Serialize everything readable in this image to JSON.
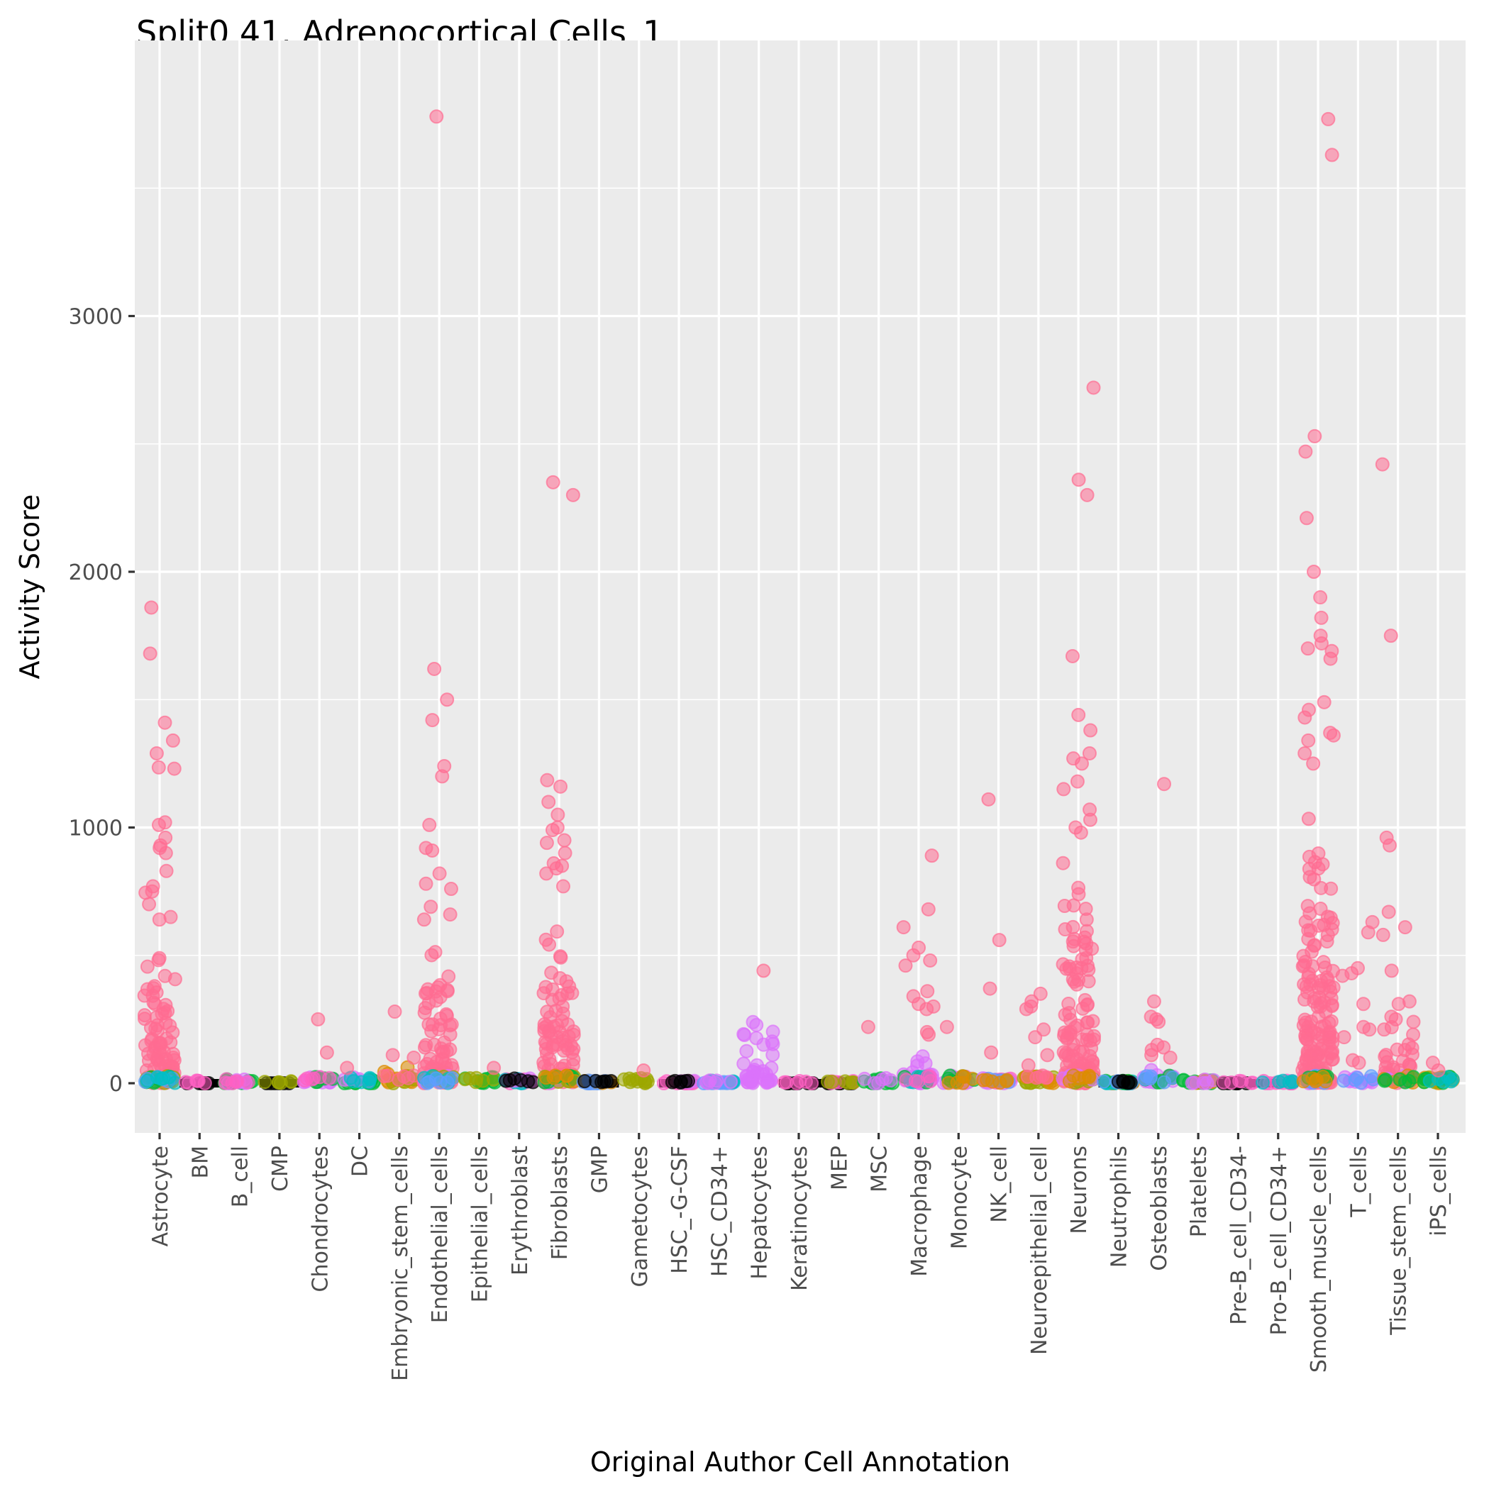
{
  "chart_data": {
    "type": "scatter",
    "subtype": "jitter-strip",
    "title": "Split0 41. Adrenocortical Cells_1",
    "xlabel": "Original Author Cell Annotation",
    "ylabel": "Activity Score",
    "ylim": [
      -200,
      4080
    ],
    "yticks": [
      0,
      1000,
      2000,
      3000
    ],
    "ytick_labels": [
      "0",
      "1000",
      "2000",
      "3000"
    ],
    "grid": true,
    "legend": "none",
    "background": "#EBEBEB",
    "categories": [
      "Astrocyte",
      "BM",
      "B_cell",
      "CMP",
      "Chondrocytes",
      "DC",
      "Embryonic_stem_cells",
      "Endothelial_cells",
      "Epithelial_cells",
      "Erythroblast",
      "Fibroblasts",
      "GMP",
      "Gametocytes",
      "HSC_-G-CSF",
      "HSC_CD34+",
      "Hepatocytes",
      "Keratinocytes",
      "MEP",
      "MSC",
      "Macrophage",
      "Monocyte",
      "NK_cell",
      "Neuroepithelial_cell",
      "Neurons",
      "Neutrophils",
      "Osteoblasts",
      "Platelets",
      "Pre-B_cell_CD34-",
      "Pro-B_cell_CD34+",
      "Smooth_muscle_cells",
      "T_cells",
      "Tissue_stem_cells",
      "iPS_cells"
    ],
    "palette": {
      "pink": "#FF6C91",
      "orange": "#DE8C00",
      "olive": "#9CA700",
      "green": "#00BA38",
      "teal": "#00BFC4",
      "blue": "#619CFF",
      "violet": "#DB72FB",
      "magenta": "#FF61C3",
      "black": "#000000"
    },
    "series": [
      {
        "category": "Astrocyte",
        "max": 1860,
        "bulk_top": 620,
        "dominant": "pink",
        "outliers": [
          1860,
          1680,
          1410,
          1340,
          1290,
          1235,
          1230,
          1020,
          1010,
          960,
          930,
          920,
          900,
          830,
          770,
          750,
          745,
          700,
          650,
          640
        ],
        "base_colors": [
          "olive",
          "orange",
          "green",
          "blue",
          "teal"
        ]
      },
      {
        "category": "BM",
        "max": 0,
        "bulk_top": 0,
        "dominant": "black",
        "outliers": [],
        "base_colors": [
          "magenta"
        ]
      },
      {
        "category": "B_cell",
        "max": 20,
        "bulk_top": 15,
        "dominant": "green",
        "outliers": [],
        "base_colors": [
          "green",
          "violet",
          "magenta"
        ]
      },
      {
        "category": "CMP",
        "max": 0,
        "bulk_top": 0,
        "dominant": "black",
        "outliers": [],
        "base_colors": [
          "olive"
        ]
      },
      {
        "category": "Chondrocytes",
        "max": 250,
        "bulk_top": 30,
        "dominant": "violet",
        "outliers": [
          250,
          120
        ],
        "base_colors": [
          "violet",
          "green",
          "magenta"
        ]
      },
      {
        "category": "DC",
        "max": 60,
        "bulk_top": 30,
        "dominant": "green",
        "outliers": [
          60
        ],
        "base_colors": [
          "green",
          "violet",
          "teal"
        ]
      },
      {
        "category": "Embryonic_stem_cells",
        "max": 280,
        "bulk_top": 70,
        "dominant": "orange",
        "outliers": [
          280,
          110,
          100
        ],
        "base_colors": [
          "orange",
          "olive",
          "pink"
        ]
      },
      {
        "category": "Endothelial_cells",
        "max": 3780,
        "bulk_top": 600,
        "dominant": "pink",
        "outliers": [
          3780,
          1620,
          1500,
          1420,
          1240,
          1200,
          1010,
          920,
          910,
          820,
          780,
          760,
          690,
          660,
          640
        ],
        "base_colors": [
          "violet",
          "olive",
          "teal",
          "blue"
        ]
      },
      {
        "category": "Epithelial_cells",
        "max": 60,
        "bulk_top": 30,
        "dominant": "green",
        "outliers": [
          60
        ],
        "base_colors": [
          "green",
          "olive"
        ]
      },
      {
        "category": "Erythroblast",
        "max": 40,
        "bulk_top": 20,
        "dominant": "magenta",
        "outliers": [],
        "base_colors": [
          "magenta",
          "teal",
          "violet",
          "black"
        ]
      },
      {
        "category": "Fibroblasts",
        "max": 2350,
        "bulk_top": 700,
        "dominant": "pink",
        "outliers": [
          2350,
          2300,
          1185,
          1160,
          1100,
          1050,
          1000,
          990,
          950,
          940,
          900,
          860,
          850,
          840,
          820,
          770
        ],
        "base_colors": [
          "violet",
          "olive",
          "green",
          "orange"
        ]
      },
      {
        "category": "GMP",
        "max": 0,
        "bulk_top": 0,
        "dominant": "blue",
        "outliers": [],
        "base_colors": [
          "orange",
          "blue",
          "black"
        ]
      },
      {
        "category": "Gametocytes",
        "max": 50,
        "bulk_top": 20,
        "dominant": "olive",
        "outliers": [
          50
        ],
        "base_colors": [
          "olive"
        ]
      },
      {
        "category": "HSC_-G-CSF",
        "max": 0,
        "bulk_top": 0,
        "dominant": "magenta",
        "outliers": [],
        "base_colors": [
          "magenta",
          "violet",
          "black"
        ]
      },
      {
        "category": "HSC_CD34+",
        "max": 10,
        "bulk_top": 5,
        "dominant": "blue",
        "outliers": [],
        "base_colors": [
          "blue",
          "teal",
          "violet"
        ]
      },
      {
        "category": "Hepatocytes",
        "max": 440,
        "bulk_top": 280,
        "dominant": "violet",
        "outliers": [
          440
        ],
        "base_colors": [
          "violet"
        ]
      },
      {
        "category": "Keratinocytes",
        "max": 0,
        "bulk_top": 0,
        "dominant": "black",
        "outliers": [],
        "base_colors": [
          "magenta"
        ]
      },
      {
        "category": "MEP",
        "max": 0,
        "bulk_top": 0,
        "dominant": "black",
        "outliers": [],
        "base_colors": [
          "magenta",
          "olive"
        ]
      },
      {
        "category": "MSC",
        "max": 220,
        "bulk_top": 20,
        "dominant": "green",
        "outliers": [
          220
        ],
        "base_colors": [
          "green",
          "violet"
        ]
      },
      {
        "category": "Macrophage",
        "max": 890,
        "bulk_top": 140,
        "dominant": "violet",
        "outliers": [
          890,
          680,
          610,
          530,
          500,
          480,
          460,
          360,
          340,
          310,
          300,
          290,
          200,
          190
        ],
        "base_colors": [
          "violet",
          "green",
          "teal",
          "magenta"
        ]
      },
      {
        "category": "Monocyte",
        "max": 220,
        "bulk_top": 60,
        "dominant": "violet",
        "outliers": [
          220
        ],
        "base_colors": [
          "violet",
          "green",
          "orange"
        ]
      },
      {
        "category": "NK_cell",
        "max": 1110,
        "bulk_top": 20,
        "dominant": "violet",
        "outliers": [
          1110,
          560,
          370,
          120
        ],
        "base_colors": [
          "violet",
          "magenta",
          "blue",
          "orange"
        ]
      },
      {
        "category": "Neuroepithelial_cell",
        "max": 350,
        "bulk_top": 60,
        "dominant": "olive",
        "outliers": [
          350,
          320,
          300,
          290,
          210,
          180,
          110,
          70
        ],
        "base_colors": [
          "olive",
          "orange",
          "pink"
        ]
      },
      {
        "category": "Neurons",
        "max": 2720,
        "bulk_top": 900,
        "dominant": "pink",
        "outliers": [
          2720,
          2360,
          2300,
          1670,
          1440,
          1380,
          1290,
          1270,
          1250,
          1180,
          1150,
          1070,
          1030,
          1000,
          980
        ],
        "base_colors": [
          "olive",
          "violet",
          "orange"
        ]
      },
      {
        "category": "Neutrophils",
        "max": 0,
        "bulk_top": 0,
        "dominant": "teal",
        "outliers": [],
        "base_colors": [
          "orange",
          "teal",
          "green",
          "blue",
          "black"
        ]
      },
      {
        "category": "Osteoblasts",
        "max": 1170,
        "bulk_top": 60,
        "dominant": "violet",
        "outliers": [
          1170,
          320,
          260,
          250,
          240,
          150,
          140,
          130,
          110,
          100
        ],
        "base_colors": [
          "violet",
          "green",
          "blue"
        ]
      },
      {
        "category": "Platelets",
        "max": 10,
        "bulk_top": 10,
        "dominant": "green",
        "outliers": [],
        "base_colors": [
          "green",
          "orange",
          "violet"
        ]
      },
      {
        "category": "Pre-B_cell_CD34-",
        "max": 0,
        "bulk_top": 0,
        "dominant": "black",
        "outliers": [],
        "base_colors": [
          "magenta"
        ]
      },
      {
        "category": "Pro-B_cell_CD34+",
        "max": 0,
        "bulk_top": 0,
        "dominant": "magenta",
        "outliers": [],
        "base_colors": [
          "magenta",
          "teal"
        ]
      },
      {
        "category": "Smooth_muscle_cells",
        "max": 3770,
        "bulk_top": 1200,
        "dominant": "pink",
        "outliers": [
          3770,
          3630,
          2530,
          2470,
          2210,
          2000,
          1900,
          1820,
          1750,
          1720,
          1700,
          1690,
          1660,
          1490,
          1460,
          1430,
          1370,
          1360,
          1340,
          1290,
          1250
        ],
        "base_colors": [
          "violet",
          "blue",
          "green",
          "orange"
        ]
      },
      {
        "category": "T_cells",
        "max": 630,
        "bulk_top": 40,
        "dominant": "violet",
        "outliers": [
          630,
          590,
          450,
          430,
          420,
          310,
          220,
          210,
          180,
          90,
          80
        ],
        "base_colors": [
          "violet",
          "blue"
        ]
      },
      {
        "category": "Tissue_stem_cells",
        "max": 2420,
        "bulk_top": 250,
        "dominant": "pink",
        "outliers": [
          2420,
          1750,
          960,
          930,
          670,
          610,
          580,
          440,
          320,
          310,
          260,
          250,
          240,
          210,
          190
        ],
        "base_colors": [
          "violet",
          "orange",
          "green"
        ]
      },
      {
        "category": "iPS_cells",
        "max": 80,
        "bulk_top": 30,
        "dominant": "orange",
        "outliers": [
          80,
          50
        ],
        "base_colors": [
          "orange",
          "olive",
          "green",
          "teal"
        ]
      }
    ]
  }
}
